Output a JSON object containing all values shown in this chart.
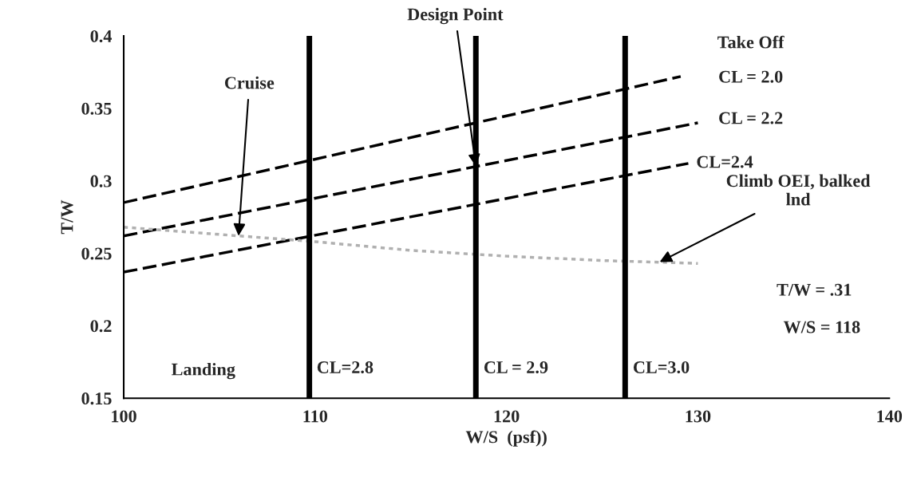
{
  "chart_data": {
    "type": "line",
    "xlabel": "W/S  (psf))",
    "ylabel": "T/W",
    "xlim": [
      100,
      140
    ],
    "xticks": [
      100,
      110,
      120,
      130,
      140
    ],
    "ylim": [
      0.15,
      0.4
    ],
    "yticks": [
      0.15,
      0.2,
      0.25,
      0.3,
      0.35,
      0.4
    ],
    "grid": false,
    "legend": false,
    "marker": "none",
    "series": [
      {
        "color": "#000000",
        "line_style": "dashed",
        "x": [
          100,
          129.1
        ],
        "values": [
          0.285,
          0.372
        ]
      },
      {
        "color": "#000000",
        "line_style": "dashed",
        "x": [
          100,
          130
        ],
        "values": [
          0.262,
          0.34
        ]
      },
      {
        "color": "#000000",
        "line_style": "dashed",
        "x": [
          100,
          129.5
        ],
        "values": [
          0.237,
          0.312
        ]
      },
      {
        "color": "#b0b0b0",
        "line_style": "dotted",
        "x": [
          100,
          106,
          110,
          115,
          120,
          125,
          130
        ],
        "values": [
          0.268,
          0.262,
          0.258,
          0.252,
          0.248,
          0.245,
          0.243
        ]
      }
    ],
    "ref_lines": [
      {
        "axis": "x",
        "value": 109.7,
        "color": "#000000"
      },
      {
        "axis": "x",
        "value": 118.4,
        "color": "#000000"
      },
      {
        "axis": "x",
        "value": 126.2,
        "color": "#000000"
      }
    ],
    "annotations": [
      {
        "text": "Design Point",
        "x": 118.4,
        "y": 0.31
      },
      {
        "text": "Cruise",
        "x": 106,
        "y": 0.262
      },
      "Take Off",
      {
        "text": "CL = 2.0",
        "x": 129.1,
        "y": 0.372
      },
      {
        "text": "CL = 2.2",
        "x": 130,
        "y": 0.34
      },
      {
        "text": "CL=2.4",
        "x": 129.5,
        "y": 0.312
      },
      {
        "text": "Climb OEI, balked\nlnd",
        "x": 128,
        "y": 0.244
      },
      "T/W = .31",
      "W/S = 118",
      "Landing",
      {
        "text": "CL=2.8",
        "x": 109.7,
        "y": 0.17
      },
      {
        "text": "CL = 2.9",
        "x": 118.4,
        "y": 0.17
      },
      {
        "text": "CL=3.0",
        "x": 126.2,
        "y": 0.17
      }
    ]
  }
}
